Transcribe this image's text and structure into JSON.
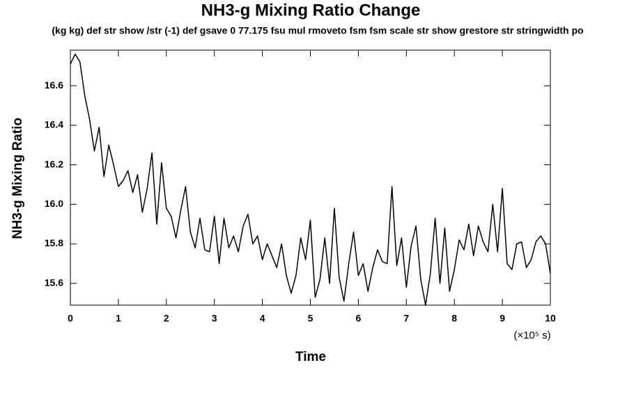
{
  "chart_data": {
    "type": "line",
    "title": "NH3-g Mixing Ratio Change",
    "subtitle": "(kg kg) def str show /str (-1) def gsave 0 77.175 fsu mul rmoveto fsm fsm scale str show grestore str stringwidth po",
    "x_label": "Time",
    "x_unit": "(×10⁵ s)",
    "y_label": "NH3-g Mixing Ratio",
    "xlim": [
      0,
      10
    ],
    "xticks": [
      0,
      1,
      2,
      3,
      4,
      5,
      6,
      7,
      8,
      9,
      10
    ],
    "ylim": [
      15.49,
      16.78
    ],
    "yticks": [
      15.6,
      15.8,
      {
        "value": 16,
        "label": "16.0"
      },
      16.2,
      16.4,
      16.6
    ],
    "x": [
      0,
      0.1,
      0.2,
      0.3,
      0.4,
      0.5,
      0.6,
      0.7,
      0.8,
      0.9,
      1,
      1.1,
      1.2,
      1.3,
      1.4,
      1.5,
      1.6,
      1.7,
      1.8,
      1.9,
      2,
      2.1,
      2.2,
      2.3,
      2.4,
      2.5,
      2.6,
      2.7,
      2.8,
      2.9,
      3,
      3.1,
      3.2,
      3.3,
      3.4,
      3.5,
      3.6,
      3.7,
      3.8,
      3.9,
      4,
      4.1,
      4.2,
      4.3,
      4.4,
      4.5,
      4.6,
      4.7,
      4.8,
      4.9,
      5,
      5.1,
      5.2,
      5.3,
      5.4,
      5.5,
      5.6,
      5.7,
      5.8,
      5.9,
      6,
      6.1,
      6.2,
      6.3,
      6.4,
      6.5,
      6.6,
      6.7,
      6.8,
      6.9,
      7,
      7.1,
      7.2,
      7.3,
      7.4,
      7.5,
      7.6,
      7.7,
      7.8,
      7.9,
      8,
      8.1,
      8.2,
      8.3,
      8.4,
      8.5,
      8.6,
      8.7,
      8.8,
      8.9,
      9,
      9.1,
      9.2,
      9.3,
      9.4,
      9.5,
      9.6,
      9.7,
      9.8,
      9.9,
      10
    ],
    "series": [
      {
        "color": "#000000",
        "values": [
          16.71,
          16.76,
          16.72,
          16.55,
          16.43,
          16.27,
          16.39,
          16.14,
          16.3,
          16.2,
          16.09,
          16.12,
          16.17,
          16.06,
          16.15,
          15.96,
          16.08,
          16.26,
          15.9,
          16.21,
          15.98,
          15.94,
          15.83,
          15.97,
          16.09,
          15.86,
          15.78,
          15.93,
          15.77,
          15.76,
          15.94,
          15.7,
          15.93,
          15.78,
          15.84,
          15.76,
          15.89,
          15.95,
          15.8,
          15.84,
          15.72,
          15.8,
          15.74,
          15.68,
          15.8,
          15.64,
          15.55,
          15.64,
          15.83,
          15.72,
          15.92,
          15.53,
          15.62,
          15.83,
          15.6,
          15.98,
          15.63,
          15.51,
          15.7,
          15.86,
          15.64,
          15.7,
          15.56,
          15.68,
          15.77,
          15.71,
          15.7,
          16.09,
          15.69,
          15.83,
          15.58,
          15.79,
          15.89,
          15.62,
          15.49,
          15.65,
          15.93,
          15.6,
          15.88,
          15.56,
          15.67,
          15.82,
          15.77,
          15.9,
          15.74,
          15.89,
          15.81,
          15.76,
          16,
          15.76,
          16.08,
          15.7,
          15.67,
          15.8,
          15.81,
          15.68,
          15.72,
          15.81,
          15.84,
          15.8,
          15.65
        ]
      }
    ]
  }
}
